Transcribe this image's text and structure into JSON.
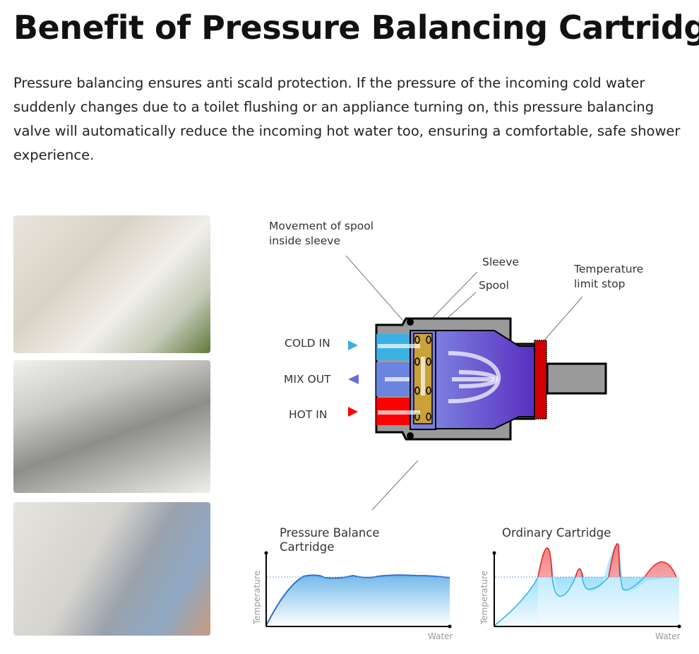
{
  "title": "Benefit of Pressure Balancing Cartridge",
  "intro": "Pressure balancing ensures anti scald protection.  If the pressure of the incoming cold water suddenly changes due to a toilet flushing or an appliance turning on, this pressure balancing valve will automatically reduce the incoming hot water too, ensuring a comfortable, safe shower experience.",
  "photos": [
    "hand-washing-photo",
    "kitchen-sink-photo",
    "washing-machine-photo"
  ],
  "diagram": {
    "labels": {
      "movement_line1": "Movement of spool",
      "movement_line2": "inside sleeve",
      "sleeve": "Sleeve",
      "spool": "Spool",
      "limit_line1": "Temperature",
      "limit_line2": "limit stop"
    },
    "ports": {
      "cold_in": "COLD IN",
      "mix_out": "MIX OUT",
      "hot_in": "HOT IN"
    },
    "colors": {
      "cold": "#3bb0e3",
      "mix": "#6a6fd6",
      "hot": "#ff0000",
      "sleeve": "#c9a23a",
      "body": "#999999",
      "stop": "#d40000"
    }
  },
  "charts": {
    "left": {
      "title_line1": "Pressure Balance",
      "title_line2": "Cartridge",
      "ylabel": "Temperature",
      "xlabel": "Water"
    },
    "right": {
      "title": "Ordinary Cartridge",
      "ylabel": "Temperature",
      "xlabel": "Water"
    }
  }
}
